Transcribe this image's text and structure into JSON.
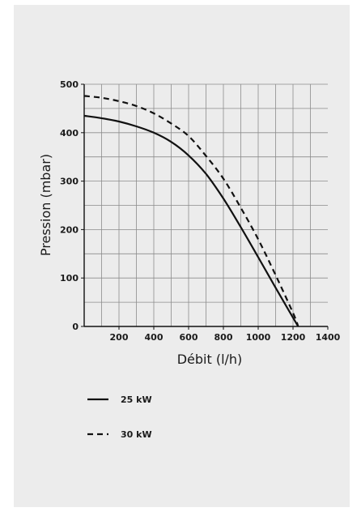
{
  "chart_data": {
    "type": "line",
    "xlabel": "Débit (l/h)",
    "ylabel": "Pression (mbar)",
    "xlim": [
      0,
      1400
    ],
    "ylim": [
      0,
      500
    ],
    "x_ticks": [
      200,
      400,
      600,
      800,
      1000,
      1200,
      1400
    ],
    "y_ticks": [
      0,
      100,
      200,
      300,
      400,
      500
    ],
    "grid": true,
    "legend_position": "bottom-left",
    "series": [
      {
        "name": "25 kW",
        "style": "solid",
        "color": "#111111",
        "x": [
          0,
          100,
          200,
          300,
          400,
          500,
          600,
          700,
          800,
          900,
          1000,
          1100,
          1200,
          1230
        ],
        "y": [
          435,
          430,
          423,
          413,
          400,
          381,
          353,
          315,
          264,
          205,
          143,
          80,
          18,
          0
        ]
      },
      {
        "name": "30 kW",
        "style": "dashed",
        "color": "#111111",
        "x": [
          0,
          100,
          200,
          300,
          400,
          500,
          600,
          700,
          800,
          900,
          1000,
          1100,
          1200,
          1230
        ],
        "y": [
          476,
          472,
          465,
          455,
          440,
          419,
          393,
          352,
          305,
          245,
          180,
          106,
          28,
          0
        ]
      }
    ]
  }
}
